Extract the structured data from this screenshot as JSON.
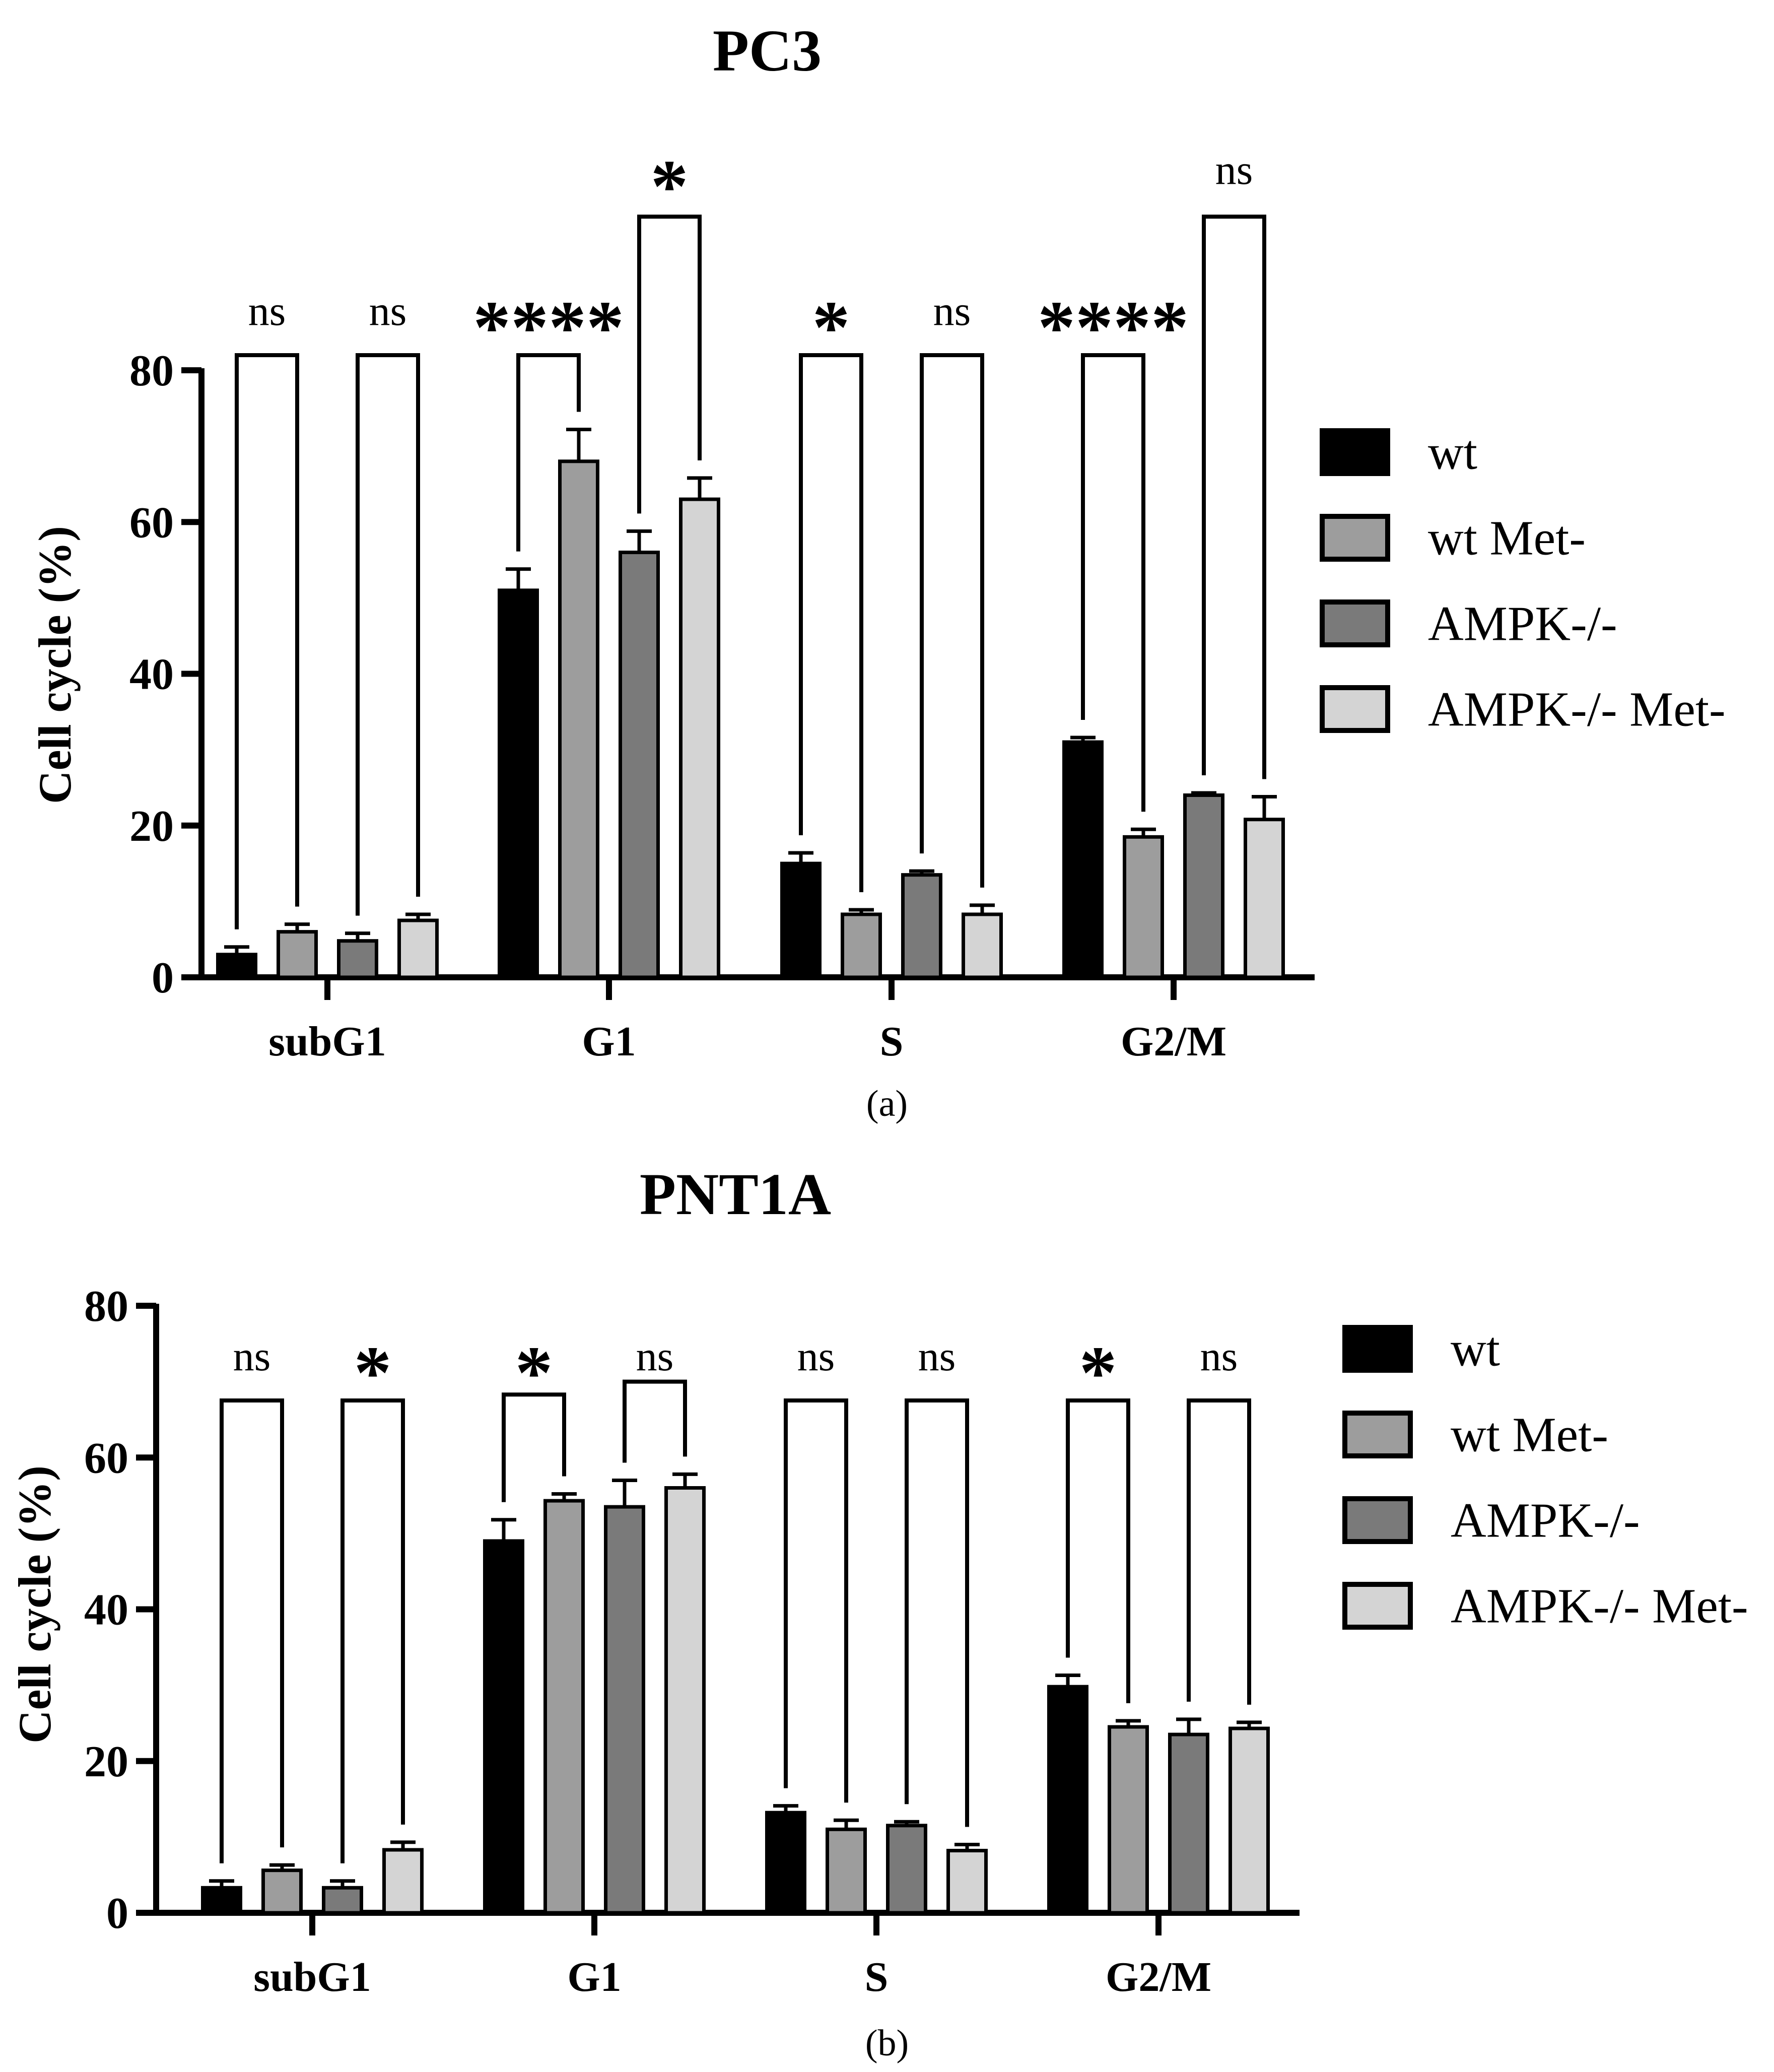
{
  "chart_data": [
    {
      "type": "bar",
      "panel_label": "(a)",
      "title": "PC3",
      "xlabel": "",
      "ylabel": "Cell cycle (%)",
      "ylim": [
        0,
        80
      ],
      "yticks": [
        0,
        20,
        40,
        60,
        80
      ],
      "categories": [
        "subG1",
        "G1",
        "S",
        "G2/M"
      ],
      "series": [
        {
          "name": "wt",
          "color": "#000000",
          "values": [
            3,
            51,
            15,
            31
          ],
          "errors": [
            1.0,
            2.8,
            1.4,
            0.6
          ]
        },
        {
          "name": "wt Met-",
          "color": "#9d9d9d",
          "values": [
            6,
            68,
            8.3,
            18.5
          ],
          "errors": [
            1.0,
            4.2,
            0.6,
            1.0
          ]
        },
        {
          "name": "AMPK-/-",
          "color": "#7a7a7a",
          "values": [
            4.8,
            56,
            13.5,
            24
          ],
          "errors": [
            1.0,
            2.8,
            0.5,
            0.3
          ]
        },
        {
          "name": "AMPK-/- Met-",
          "color": "#d4d4d4",
          "values": [
            7.5,
            63,
            8.3,
            20.8
          ],
          "errors": [
            0.8,
            2.8,
            1.2,
            3.0
          ]
        }
      ],
      "comparisons": [
        {
          "category": "subG1",
          "groups": [
            "wt",
            "wt Met-"
          ],
          "label": "ns"
        },
        {
          "category": "subG1",
          "groups": [
            "AMPK-/-",
            "AMPK-/- Met-"
          ],
          "label": "ns"
        },
        {
          "category": "G1",
          "groups": [
            "wt",
            "wt Met-"
          ],
          "label": "****"
        },
        {
          "category": "G1",
          "groups": [
            "AMPK-/-",
            "AMPK-/- Met-"
          ],
          "label": "*"
        },
        {
          "category": "S",
          "groups": [
            "wt",
            "wt Met-"
          ],
          "label": "*"
        },
        {
          "category": "S",
          "groups": [
            "AMPK-/-",
            "AMPK-/- Met-"
          ],
          "label": "ns"
        },
        {
          "category": "G2/M",
          "groups": [
            "wt",
            "wt Met-"
          ],
          "label": "****"
        },
        {
          "category": "G2/M",
          "groups": [
            "AMPK-/-",
            "AMPK-/- Met-"
          ],
          "label": "ns"
        }
      ]
    },
    {
      "type": "bar",
      "panel_label": "(b)",
      "title": "PNT1A",
      "xlabel": "",
      "ylabel": "Cell cycle (%)",
      "ylim": [
        0,
        80
      ],
      "yticks": [
        0,
        20,
        40,
        60,
        80
      ],
      "categories": [
        "subG1",
        "G1",
        "S",
        "G2/M"
      ],
      "series": [
        {
          "name": "wt",
          "color": "#000000",
          "values": [
            3.3,
            49,
            13.2,
            29.8
          ],
          "errors": [
            0.9,
            2.8,
            0.9,
            1.5
          ]
        },
        {
          "name": "wt Met-",
          "color": "#9d9d9d",
          "values": [
            5.6,
            54.3,
            11,
            24.5
          ],
          "errors": [
            0.7,
            0.9,
            1.2,
            0.8
          ]
        },
        {
          "name": "AMPK-/-",
          "color": "#7a7a7a",
          "values": [
            3.3,
            53.5,
            11.5,
            23.5
          ],
          "errors": [
            0.9,
            3.5,
            0.5,
            2.0
          ]
        },
        {
          "name": "AMPK-/- Met-",
          "color": "#d4d4d4",
          "values": [
            8.3,
            56,
            8.2,
            24.3
          ],
          "errors": [
            1.0,
            1.8,
            0.8,
            0.8
          ]
        }
      ],
      "comparisons": [
        {
          "category": "subG1",
          "groups": [
            "wt",
            "wt Met-"
          ],
          "label": "ns"
        },
        {
          "category": "subG1",
          "groups": [
            "AMPK-/-",
            "AMPK-/- Met-"
          ],
          "label": "*"
        },
        {
          "category": "G1",
          "groups": [
            "wt",
            "wt Met-"
          ],
          "label": "*"
        },
        {
          "category": "G1",
          "groups": [
            "AMPK-/-",
            "AMPK-/- Met-"
          ],
          "label": "ns"
        },
        {
          "category": "S",
          "groups": [
            "wt",
            "wt Met-"
          ],
          "label": "ns"
        },
        {
          "category": "S",
          "groups": [
            "AMPK-/-",
            "AMPK-/- Met-"
          ],
          "label": "ns"
        },
        {
          "category": "G2/M",
          "groups": [
            "wt",
            "wt Met-"
          ],
          "label": "*"
        },
        {
          "category": "G2/M",
          "groups": [
            "AMPK-/-",
            "AMPK-/- Met-"
          ],
          "label": "ns"
        }
      ]
    }
  ]
}
